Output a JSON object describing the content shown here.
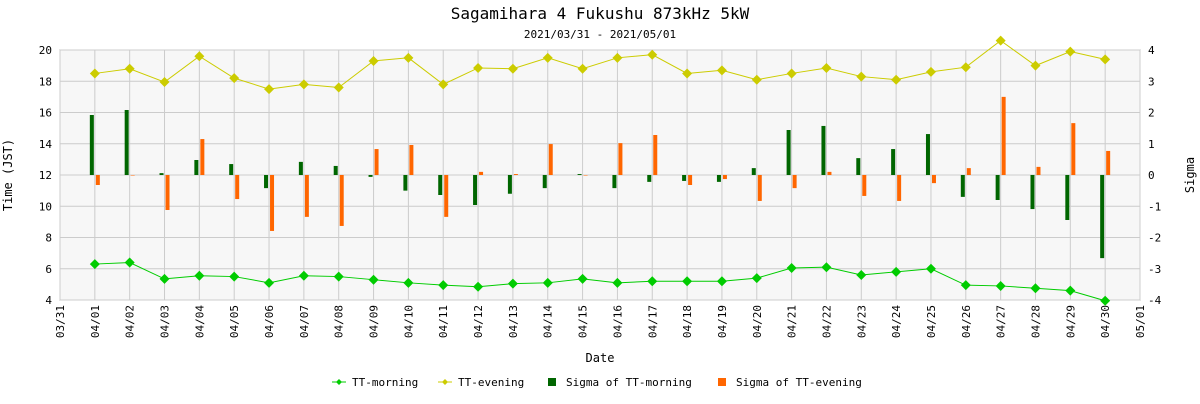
{
  "chart_data": {
    "type": "line+bar",
    "title": "Sagamihara 4 Fukushu 873kHz 5kW",
    "subtitle": "2021/03/31 - 2021/05/01",
    "xlabel": "Date",
    "ylabel": "Time (JST)",
    "y2label": "Sigma",
    "ylim": [
      4,
      20
    ],
    "y2lim": [
      -4,
      4
    ],
    "yticks": [
      "4",
      "6",
      "8",
      "10",
      "12",
      "14",
      "16",
      "18",
      "20"
    ],
    "y2ticks": [
      "-4",
      "-3",
      "-2",
      "-1",
      "0",
      "1",
      "2",
      "3",
      "4"
    ],
    "xticks": [
      "03/31",
      "04/01",
      "04/02",
      "04/03",
      "04/04",
      "04/05",
      "04/06",
      "04/07",
      "04/08",
      "04/09",
      "04/10",
      "04/11",
      "04/12",
      "04/13",
      "04/14",
      "04/15",
      "04/16",
      "04/17",
      "04/18",
      "04/19",
      "04/20",
      "04/21",
      "04/22",
      "04/23",
      "04/24",
      "04/25",
      "04/26",
      "04/27",
      "04/28",
      "04/29",
      "04/30",
      "05/01"
    ],
    "grid": true,
    "legend_position": "bottom-center",
    "series": [
      {
        "name": "TT-morning",
        "type": "line",
        "axis": "left",
        "color": "#00cc00",
        "values": [
          6.3,
          6.4,
          5.35,
          5.55,
          5.5,
          5.1,
          5.55,
          5.5,
          5.3,
          5.1,
          4.95,
          4.85,
          5.05,
          5.1,
          5.35,
          5.1,
          5.2,
          5.2,
          5.2,
          5.4,
          6.05,
          6.1,
          5.6,
          5.8,
          6.0,
          4.95,
          4.9,
          4.75,
          4.6,
          3.95
        ]
      },
      {
        "name": "TT-evening",
        "type": "line",
        "axis": "left",
        "color": "#cccc00",
        "values": [
          18.5,
          18.8,
          17.95,
          19.6,
          18.2,
          17.5,
          17.8,
          17.6,
          19.3,
          19.5,
          17.8,
          18.85,
          18.8,
          19.5,
          18.8,
          19.5,
          19.7,
          18.5,
          18.7,
          18.1,
          18.5,
          18.85,
          18.3,
          18.1,
          18.6,
          18.9,
          20.6,
          19.0,
          19.9,
          19.4
        ]
      },
      {
        "name": "Sigma of TT-morning",
        "type": "bar",
        "axis": "right",
        "color": "#006600",
        "values": [
          1.92,
          2.08,
          0.06,
          0.48,
          0.35,
          -0.42,
          0.42,
          0.29,
          -0.06,
          -0.5,
          -0.64,
          -0.96,
          -0.6,
          -0.42,
          0.03,
          -0.42,
          -0.22,
          -0.19,
          -0.22,
          0.22,
          1.44,
          1.57,
          0.54,
          0.83,
          1.31,
          -0.7,
          -0.8,
          -1.09,
          -1.44,
          -2.66
        ]
      },
      {
        "name": "Sigma of TT-evening",
        "type": "bar",
        "axis": "right",
        "color": "#ff6600",
        "values": [
          -0.32,
          0.0,
          -1.12,
          1.15,
          -0.77,
          -1.79,
          -1.34,
          -1.63,
          0.83,
          0.96,
          -1.34,
          0.1,
          0.03,
          0.99,
          0.0,
          1.02,
          1.28,
          -0.32,
          -0.13,
          -0.83,
          -0.42,
          0.1,
          -0.67,
          -0.83,
          -0.26,
          0.22,
          2.5,
          0.26,
          1.66,
          0.77
        ]
      }
    ]
  }
}
